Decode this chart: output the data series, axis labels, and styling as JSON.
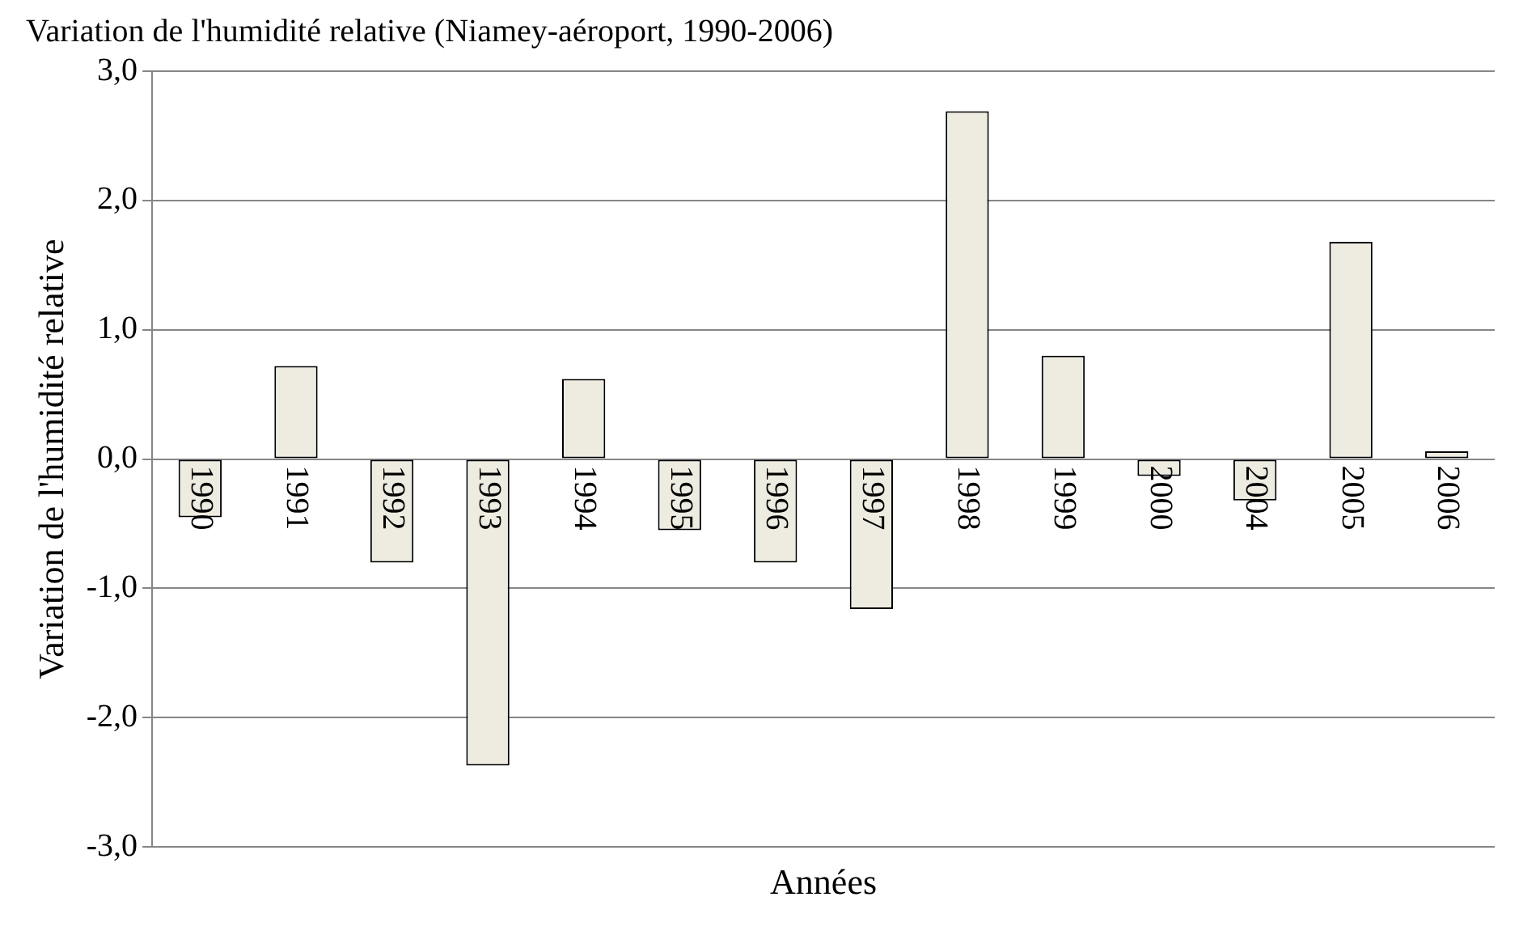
{
  "chart_data": {
    "type": "bar",
    "title": "Variation de l'humidité relative (Niamey-aéroport, 1990-2006)",
    "xlabel": "Années",
    "ylabel": "Variation de l'humidité relative",
    "categories": [
      "1990",
      "1991",
      "1992",
      "1993",
      "1994",
      "1995",
      "1996",
      "1997",
      "1998",
      "1999",
      "2000",
      "2004",
      "2005",
      "2006"
    ],
    "series": [
      {
        "color": "#eeece1",
        "values": [
          -0.45,
          0.72,
          -0.8,
          -2.37,
          0.62,
          -0.55,
          -0.8,
          -1.16,
          2.69,
          0.8,
          -0.13,
          -0.32,
          1.68,
          0.06
        ]
      }
    ],
    "ylim": [
      -3,
      3
    ],
    "yticks": [
      {
        "value": -3,
        "label": "-3,0"
      },
      {
        "value": -2,
        "label": "-2,0"
      },
      {
        "value": -1,
        "label": "-1,0"
      },
      {
        "value": 0,
        "label": "0,0"
      },
      {
        "value": 1,
        "label": "1,0"
      },
      {
        "value": 2,
        "label": "2,0"
      },
      {
        "value": 3,
        "label": "3,0"
      }
    ],
    "grid": "y",
    "legend": false
  }
}
